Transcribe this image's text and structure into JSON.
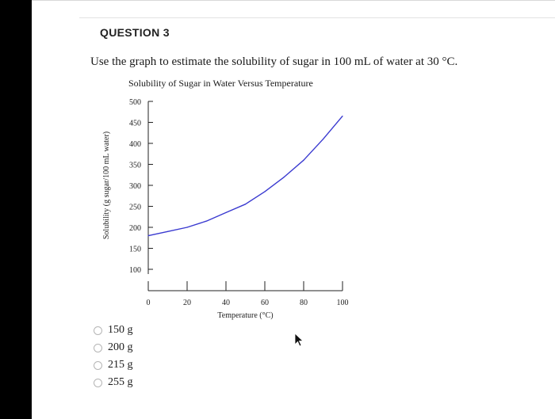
{
  "question": {
    "title": "QUESTION 3",
    "text": "Use the graph to estimate the solubility of sugar in 100 mL of water at 30 °C."
  },
  "chart_data": {
    "type": "line",
    "title": "Solubility of Sugar in Water Versus Temperature",
    "xlabel": "Temperature (°C)",
    "ylabel": "Solubility (g sugar/100 mL water)",
    "x_ticks": [
      0,
      20,
      40,
      60,
      80,
      100
    ],
    "y_ticks": [
      100,
      150,
      200,
      250,
      300,
      350,
      400,
      450,
      500
    ],
    "xlim": [
      0,
      100
    ],
    "ylim": [
      100,
      500
    ],
    "grid": false,
    "color": "#3a3ad0",
    "x": [
      0,
      10,
      20,
      30,
      40,
      50,
      60,
      70,
      80,
      90,
      100
    ],
    "y": [
      180,
      190,
      200,
      215,
      235,
      255,
      285,
      320,
      360,
      410,
      465
    ]
  },
  "answers": {
    "options": [
      {
        "label": "150 g"
      },
      {
        "label": "200 g"
      },
      {
        "label": "215 g"
      },
      {
        "label": "255 g"
      }
    ]
  },
  "icons": {
    "radio": "radio-unselected-icon",
    "cursor": "mouse-pointer-icon"
  }
}
